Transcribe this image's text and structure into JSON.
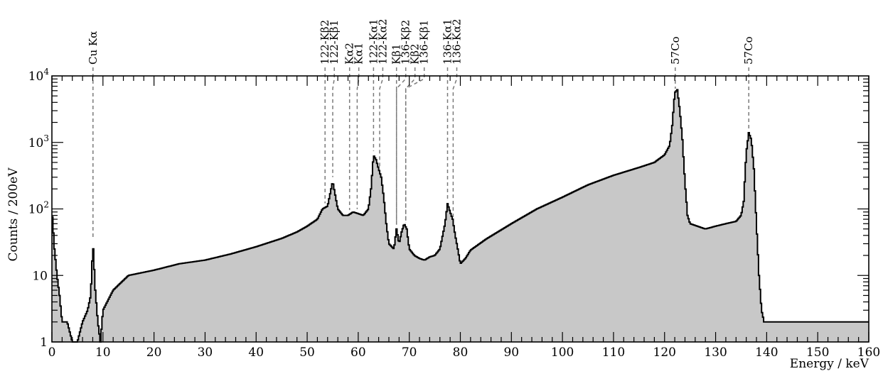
{
  "chart_data": {
    "type": "area",
    "title": "",
    "xlabel": "Energy / keV",
    "ylabel": "Counts / 200eV",
    "xlim": [
      0,
      160
    ],
    "ylim": [
      1,
      10000
    ],
    "y_scale": "log",
    "grid": false,
    "fill_color": "#c8c8c8",
    "line_color": "#000000",
    "x_ticks": [
      0,
      10,
      20,
      30,
      40,
      50,
      60,
      70,
      80,
      90,
      100,
      110,
      120,
      130,
      140,
      150,
      160
    ],
    "x_tick_labels": [
      "0",
      "10",
      "20",
      "30",
      "40",
      "50",
      "60",
      "70",
      "80",
      "90",
      "100",
      "110",
      "120",
      "130",
      "140",
      "150",
      "160"
    ],
    "y_tick_labels": [
      {
        "value": 1,
        "label": "1"
      },
      {
        "value": 10,
        "label": "10"
      },
      {
        "value": 100,
        "label": "10^2"
      },
      {
        "value": 1000,
        "label": "10^3"
      },
      {
        "value": 10000,
        "label": "10^4"
      }
    ],
    "series": [
      {
        "x": [
          0,
          0.5,
          1,
          1.5,
          2,
          3,
          4,
          5,
          6,
          7,
          7.6,
          8.05,
          8.5,
          9,
          9.5,
          10,
          12,
          15,
          20,
          25,
          30,
          35,
          40,
          45,
          48,
          50,
          52,
          53,
          54,
          55,
          56,
          57,
          58,
          59,
          60,
          61,
          62,
          62.5,
          63,
          63.5,
          64,
          64.5,
          65,
          65.5,
          66,
          67,
          67.5,
          68,
          68.5,
          69,
          69.5,
          70,
          71,
          72,
          73,
          74,
          75,
          76,
          77,
          77.5,
          78,
          78.5,
          79,
          79.5,
          80,
          81,
          82,
          85,
          90,
          95,
          100,
          105,
          110,
          115,
          118,
          120,
          121,
          121.5,
          122,
          122.5,
          123,
          123.5,
          124,
          124.5,
          125,
          128,
          130,
          132,
          134,
          135,
          135.5,
          136,
          136.5,
          137,
          137.5,
          138,
          138.5,
          139,
          139.5,
          140,
          145,
          150,
          155,
          160
        ],
        "y": [
          100,
          25,
          10,
          5,
          2,
          2,
          1,
          1,
          2,
          3,
          5,
          30,
          6,
          2,
          1,
          3,
          6,
          10,
          12,
          15,
          17,
          21,
          27,
          36,
          45,
          55,
          70,
          100,
          110,
          260,
          100,
          80,
          80,
          90,
          85,
          80,
          100,
          200,
          640,
          550,
          400,
          300,
          150,
          60,
          30,
          25,
          50,
          30,
          45,
          60,
          50,
          25,
          20,
          18,
          17,
          19,
          20,
          25,
          60,
          120,
          90,
          70,
          40,
          25,
          15,
          18,
          24,
          35,
          60,
          100,
          150,
          230,
          320,
          420,
          500,
          650,
          900,
          1800,
          5600,
          6200,
          3000,
          1100,
          250,
          80,
          60,
          50,
          55,
          60,
          65,
          80,
          130,
          700,
          1400,
          1100,
          400,
          60,
          10,
          3,
          2,
          2,
          2,
          2,
          2,
          2
        ]
      }
    ],
    "annotations": [
      {
        "label": "Cu Kα",
        "x": 8.05
      },
      {
        "label": "122-Kβ2",
        "x": 53.5
      },
      {
        "label": "122-Kβ1",
        "x": 55.0
      },
      {
        "label": "Kα2",
        "x": 58.3
      },
      {
        "label": "Kα1",
        "x": 59.8
      },
      {
        "label": "122-Kα1",
        "x": 63.0
      },
      {
        "label": "122-Kα2",
        "x": 64.2
      },
      {
        "label": "Kβ1",
        "x": 67.5
      },
      {
        "label": "136-Kβ2",
        "x": 67.5
      },
      {
        "label": "Kβ2",
        "x": 69.3
      },
      {
        "label": "136-Kβ1",
        "x": 69.3
      },
      {
        "label": "136-Kα1",
        "x": 77.5
      },
      {
        "label": "136-Kα2",
        "x": 78.6
      },
      {
        "label": "57Co",
        "x": 122.1
      },
      {
        "label": "57Co",
        "x": 136.5
      }
    ]
  }
}
